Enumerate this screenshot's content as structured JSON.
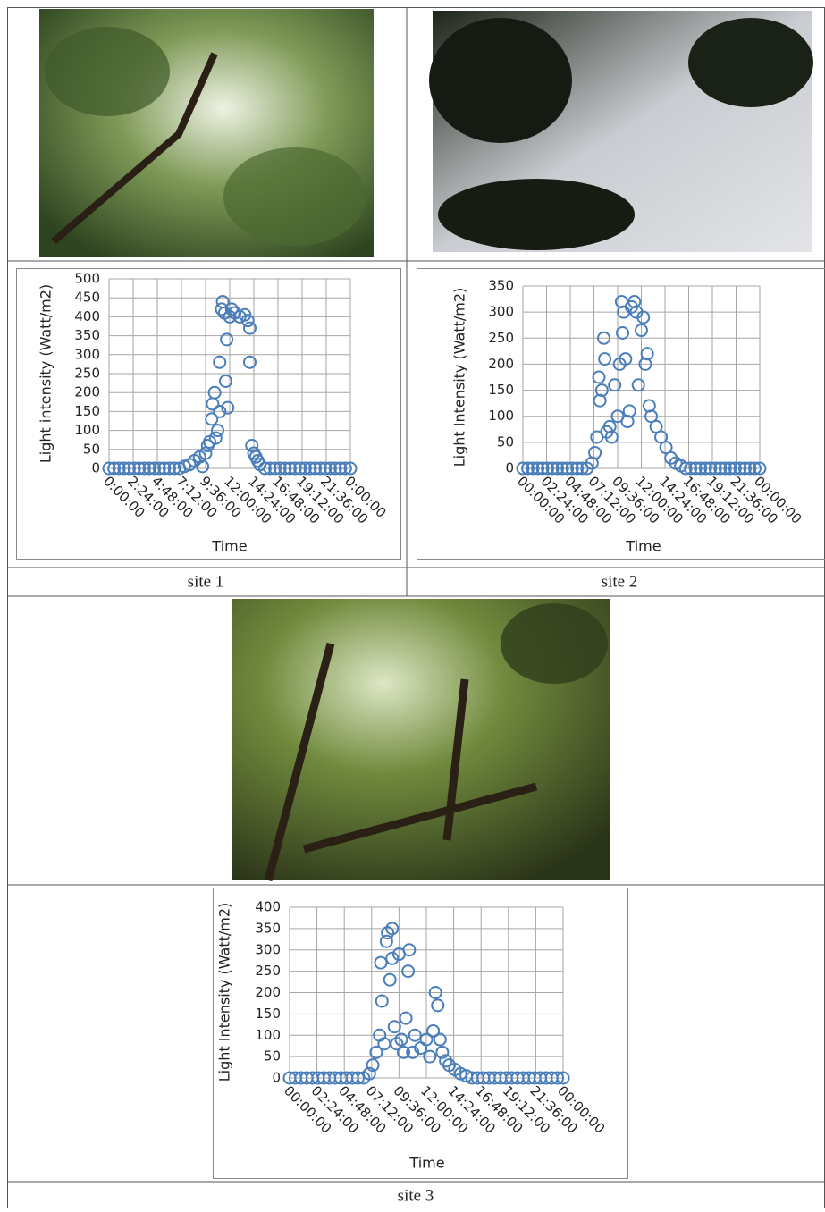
{
  "captions": [
    "site 1",
    "site 2",
    "site 3"
  ],
  "chart_data": [
    {
      "type": "scatter",
      "y_label": "Light intensity (Watt/m2)",
      "x_label": "Time",
      "color": "#4a7ebb",
      "grid": true,
      "xlim": [
        0,
        24
      ],
      "ylim": [
        0,
        500
      ],
      "xticks": [
        {
          "value": 0,
          "label": "0:00:00"
        },
        {
          "value": 2.4,
          "label": "2:24:00"
        },
        {
          "value": 4.8,
          "label": "4:48:00"
        },
        {
          "value": 7.2,
          "label": "7:12:00"
        },
        {
          "value": 9.6,
          "label": "9:36:00"
        },
        {
          "value": 12,
          "label": "12:00:00"
        },
        {
          "value": 14.4,
          "label": "14:24:00"
        },
        {
          "value": 16.8,
          "label": "16:48:00"
        },
        {
          "value": 19.2,
          "label": "19:12:00"
        },
        {
          "value": 21.6,
          "label": "21:36:00"
        },
        {
          "value": 24,
          "label": "0:00:00"
        }
      ],
      "yticks": [
        0,
        50,
        100,
        150,
        200,
        250,
        300,
        350,
        400,
        450,
        500
      ],
      "x": [
        0,
        0.5,
        1,
        1.5,
        2,
        2.5,
        3,
        3.5,
        4,
        4.5,
        5,
        5.5,
        6,
        6.5,
        7,
        7.5,
        8,
        8.5,
        9,
        9.3,
        9.6,
        9.8,
        10,
        10.2,
        10.3,
        10.5,
        10.6,
        10.8,
        11,
        11,
        11.2,
        11.3,
        11.5,
        11.6,
        11.7,
        11.8,
        12,
        12.2,
        12.5,
        13,
        13.5,
        13.8,
        14,
        14,
        14.2,
        14.4,
        14.6,
        14.8,
        15,
        15.5,
        16,
        16.5,
        17,
        17.5,
        18,
        18.5,
        19,
        19.5,
        20,
        20.5,
        21,
        21.5,
        22,
        22.5,
        23,
        23.5,
        24
      ],
      "values": [
        0,
        0,
        0,
        0,
        0,
        0,
        0,
        0,
        0,
        0,
        0,
        0,
        0,
        0,
        0,
        5,
        10,
        20,
        30,
        5,
        40,
        60,
        70,
        130,
        170,
        200,
        80,
        100,
        150,
        280,
        420,
        440,
        410,
        230,
        340,
        160,
        400,
        420,
        410,
        400,
        405,
        390,
        280,
        370,
        60,
        40,
        30,
        20,
        10,
        0,
        0,
        0,
        0,
        0,
        0,
        0,
        0,
        0,
        0,
        0,
        0,
        0,
        0,
        0,
        0,
        0,
        0
      ]
    },
    {
      "type": "scatter",
      "y_label": "Light Intensity (Watt/m2)",
      "x_label": "Time",
      "color": "#4a7ebb",
      "grid": true,
      "xlim": [
        0,
        24
      ],
      "ylim": [
        0,
        350
      ],
      "xticks": [
        {
          "value": 0,
          "label": "00:00:00"
        },
        {
          "value": 2.4,
          "label": "02:24:00"
        },
        {
          "value": 4.8,
          "label": "04:48:00"
        },
        {
          "value": 7.2,
          "label": "07:12:00"
        },
        {
          "value": 9.6,
          "label": "09:36:00"
        },
        {
          "value": 12,
          "label": "12:00:00"
        },
        {
          "value": 14.4,
          "label": "14:24:00"
        },
        {
          "value": 16.8,
          "label": "16:48:00"
        },
        {
          "value": 19.2,
          "label": "19:12:00"
        },
        {
          "value": 21.6,
          "label": "21:36:00"
        },
        {
          "value": 24,
          "label": "00:00:00"
        }
      ],
      "yticks": [
        0,
        50,
        100,
        150,
        200,
        250,
        300,
        350
      ],
      "x": [
        0,
        0.5,
        1,
        1.5,
        2,
        2.5,
        3,
        3.5,
        4,
        4.5,
        5,
        5.5,
        6,
        6.5,
        7,
        7.3,
        7.5,
        7.7,
        7.8,
        8,
        8.2,
        8.3,
        8.5,
        8.8,
        9,
        9.3,
        9.6,
        9.8,
        10,
        10.1,
        10.2,
        10.4,
        10.6,
        10.8,
        11,
        11.3,
        11.5,
        11.7,
        12,
        12.2,
        12.4,
        12.6,
        12.8,
        13,
        13.5,
        14,
        14.5,
        15,
        15.5,
        16,
        16.5,
        17,
        17.5,
        18,
        18.5,
        19,
        19.5,
        20,
        20.5,
        21,
        21.5,
        22,
        22.5,
        23,
        23.5,
        24
      ],
      "values": [
        0,
        0,
        0,
        0,
        0,
        0,
        0,
        0,
        0,
        0,
        0,
        0,
        0,
        0,
        10,
        30,
        60,
        175,
        130,
        150,
        250,
        210,
        70,
        80,
        60,
        160,
        100,
        200,
        320,
        260,
        300,
        210,
        90,
        110,
        310,
        320,
        300,
        160,
        265,
        290,
        200,
        220,
        120,
        100,
        80,
        60,
        40,
        20,
        10,
        5,
        0,
        0,
        0,
        0,
        0,
        0,
        0,
        0,
        0,
        0,
        0,
        0,
        0,
        0,
        0,
        0
      ]
    },
    {
      "type": "scatter",
      "y_label": "Light Intensity (Watt/m2)",
      "x_label": "Time",
      "color": "#4a7ebb",
      "grid": true,
      "xlim": [
        0,
        24
      ],
      "ylim": [
        0,
        400
      ],
      "xticks": [
        {
          "value": 0,
          "label": "00:00:00"
        },
        {
          "value": 2.4,
          "label": "02:24:00"
        },
        {
          "value": 4.8,
          "label": "04:48:00"
        },
        {
          "value": 7.2,
          "label": "07:12:00"
        },
        {
          "value": 9.6,
          "label": "09:36:00"
        },
        {
          "value": 12,
          "label": "12:00:00"
        },
        {
          "value": 14.4,
          "label": "14:24:00"
        },
        {
          "value": 16.8,
          "label": "16:48:00"
        },
        {
          "value": 19.2,
          "label": "19:12:00"
        },
        {
          "value": 21.6,
          "label": "21:36:00"
        },
        {
          "value": 24,
          "label": "00:00:00"
        }
      ],
      "yticks": [
        0,
        50,
        100,
        150,
        200,
        250,
        300,
        350,
        400
      ],
      "x": [
        0,
        0.5,
        1,
        1.5,
        2,
        2.5,
        3,
        3.5,
        4,
        4.5,
        5,
        5.5,
        6,
        6.5,
        7,
        7.3,
        7.6,
        7.9,
        8,
        8.1,
        8.3,
        8.5,
        8.6,
        8.8,
        9,
        9,
        9.2,
        9.4,
        9.6,
        9.8,
        10,
        10.2,
        10.4,
        10.5,
        10.8,
        11,
        11.5,
        12,
        12.3,
        12.6,
        12.8,
        13,
        13.2,
        13.4,
        13.7,
        14,
        14.5,
        15,
        15.5,
        16,
        16.5,
        17,
        17.5,
        18,
        18.5,
        19,
        19.5,
        20,
        20.5,
        21,
        21.5,
        22,
        22.5,
        23,
        23.5,
        24
      ],
      "values": [
        0,
        0,
        0,
        0,
        0,
        0,
        0,
        0,
        0,
        0,
        0,
        0,
        0,
        0,
        10,
        30,
        60,
        100,
        270,
        180,
        80,
        320,
        340,
        230,
        280,
        350,
        120,
        80,
        290,
        90,
        60,
        140,
        250,
        300,
        60,
        100,
        70,
        90,
        50,
        110,
        200,
        170,
        90,
        60,
        40,
        30,
        20,
        10,
        5,
        0,
        0,
        0,
        0,
        0,
        0,
        0,
        0,
        0,
        0,
        0,
        0,
        0,
        0,
        0,
        0,
        0
      ]
    }
  ]
}
